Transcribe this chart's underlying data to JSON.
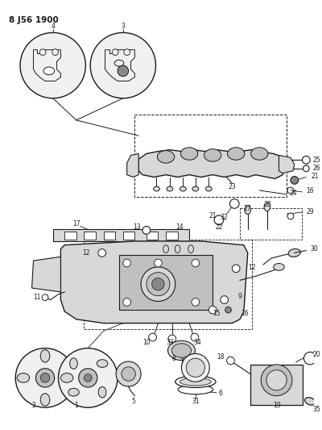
{
  "title": "8 J56 1900",
  "bg_color": "#ffffff",
  "lc": "#1a1a1a",
  "figsize": [
    4.0,
    5.33
  ],
  "dpi": 100,
  "gray_fill": "#d8d8d8",
  "light_fill": "#f0f0f0",
  "med_fill": "#c0c0c0",
  "dark_fill": "#888888"
}
